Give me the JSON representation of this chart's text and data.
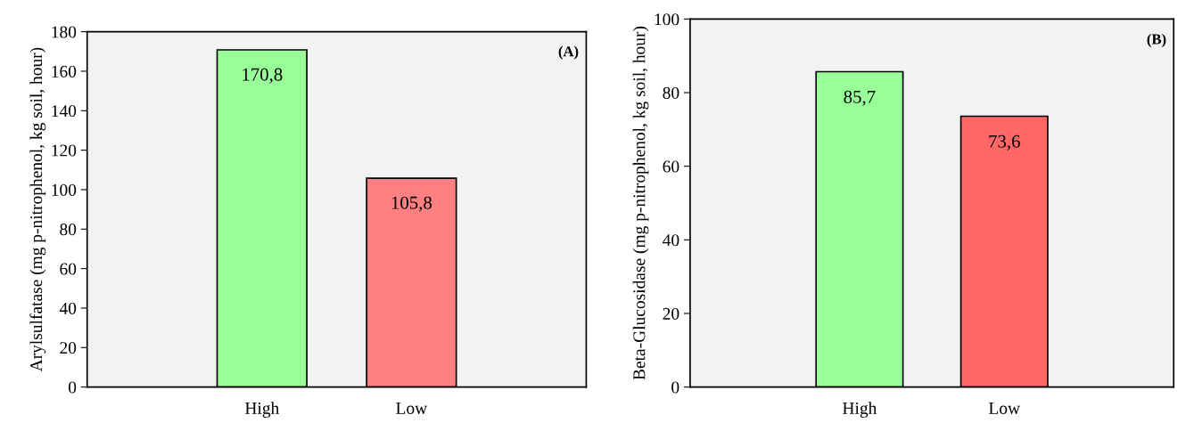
{
  "chart_data": [
    {
      "type": "bar",
      "ylabel": "Arylsulfatase (mg p-nitrophenol, kg soil, hour)",
      "categories": [
        "High",
        "Low"
      ],
      "values": [
        170.8,
        105.8
      ],
      "colors": [
        "#99ff99",
        "#ff8080"
      ],
      "value_labels": [
        "170,8",
        "105,8"
      ],
      "ylim": [
        0,
        180
      ],
      "yticks": [
        0,
        20,
        40,
        60,
        80,
        100,
        120,
        140,
        160,
        180
      ],
      "grid": false,
      "annotations": [
        "(A)"
      ]
    },
    {
      "type": "bar",
      "ylabel": "Beta-Glucosidase (mg p-nitrophenol, kg soil, hour)",
      "categories": [
        "High",
        "Low"
      ],
      "values": [
        85.7,
        73.6
      ],
      "colors": [
        "#99ff99",
        "#ff6666"
      ],
      "value_labels": [
        "85,7",
        "73,6"
      ],
      "ylim": [
        0,
        100
      ],
      "yticks": [
        0,
        20,
        40,
        60,
        80,
        100
      ],
      "grid": false,
      "annotations": [
        "(B)"
      ]
    }
  ]
}
